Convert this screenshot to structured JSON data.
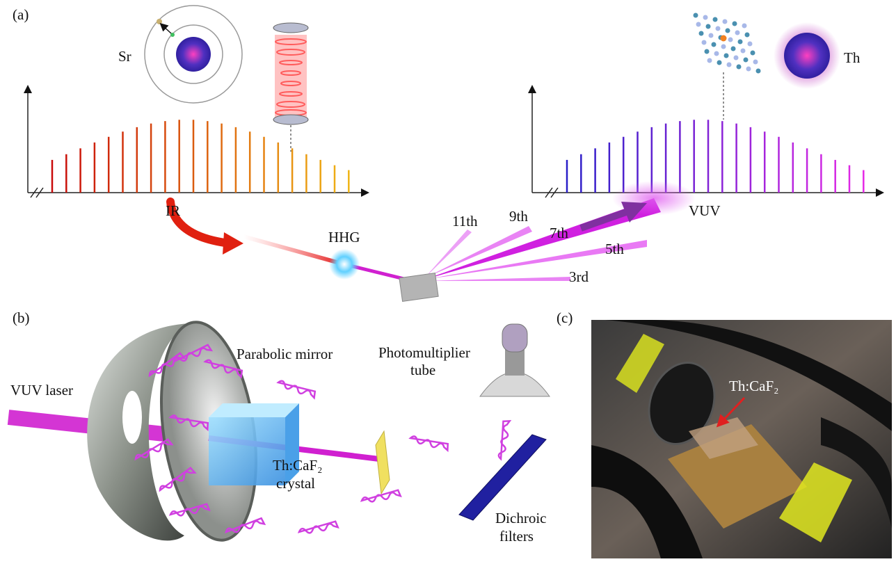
{
  "panel_a": {
    "label": "(a)",
    "atom": "Sr",
    "nucleus": "Th",
    "ir": "IR",
    "vuv": "VUV",
    "hhg": "HHG",
    "harmonics": [
      "11th",
      "9th",
      "7th",
      "5th",
      "3rd"
    ]
  },
  "panel_b": {
    "label": "(b)",
    "laser": "VUV laser",
    "mirror": "Parabolic mirror",
    "pmt": [
      "Photomultiplier",
      "tube"
    ],
    "crystal": [
      "Th:CaF₂",
      "crystal"
    ],
    "filters": [
      "Dichroic",
      "filters"
    ]
  },
  "panel_c": {
    "label": "(c)",
    "sample": "Th:CaF₂"
  }
}
